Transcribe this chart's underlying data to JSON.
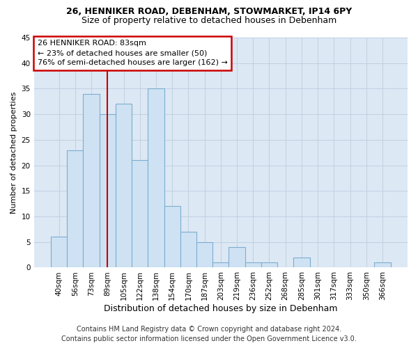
{
  "title1": "26, HENNIKER ROAD, DEBENHAM, STOWMARKET, IP14 6PY",
  "title2": "Size of property relative to detached houses in Debenham",
  "xlabel": "Distribution of detached houses by size in Debenham",
  "ylabel": "Number of detached properties",
  "categories": [
    "40sqm",
    "56sqm",
    "73sqm",
    "89sqm",
    "105sqm",
    "122sqm",
    "138sqm",
    "154sqm",
    "170sqm",
    "187sqm",
    "203sqm",
    "219sqm",
    "236sqm",
    "252sqm",
    "268sqm",
    "285sqm",
    "301sqm",
    "317sqm",
    "333sqm",
    "350sqm",
    "366sqm"
  ],
  "values": [
    6,
    23,
    34,
    30,
    32,
    21,
    35,
    12,
    7,
    5,
    1,
    4,
    1,
    1,
    0,
    2,
    0,
    0,
    0,
    0,
    1
  ],
  "bar_color": "#cfe2f3",
  "bar_edge_color": "#7aadcf",
  "property_line_x": 3.0,
  "annotation_line1": "26 HENNIKER ROAD: 83sqm",
  "annotation_line2": "← 23% of detached houses are smaller (50)",
  "annotation_line3": "76% of semi-detached houses are larger (162) →",
  "annotation_box_color": "#ffffff",
  "annotation_box_edge_color": "#cc0000",
  "vline_color": "#cc0000",
  "ylim": [
    0,
    45
  ],
  "yticks": [
    0,
    5,
    10,
    15,
    20,
    25,
    30,
    35,
    40,
    45
  ],
  "footnote1": "Contains HM Land Registry data © Crown copyright and database right 2024.",
  "footnote2": "Contains public sector information licensed under the Open Government Licence v3.0.",
  "bg_color": "#ffffff",
  "plot_bg_color": "#dde8f5",
  "grid_color": "#c0d0e0",
  "title1_fontsize": 9,
  "title2_fontsize": 9,
  "xlabel_fontsize": 9,
  "ylabel_fontsize": 8,
  "tick_fontsize": 7.5,
  "annotation_fontsize": 8,
  "footnote_fontsize": 7
}
